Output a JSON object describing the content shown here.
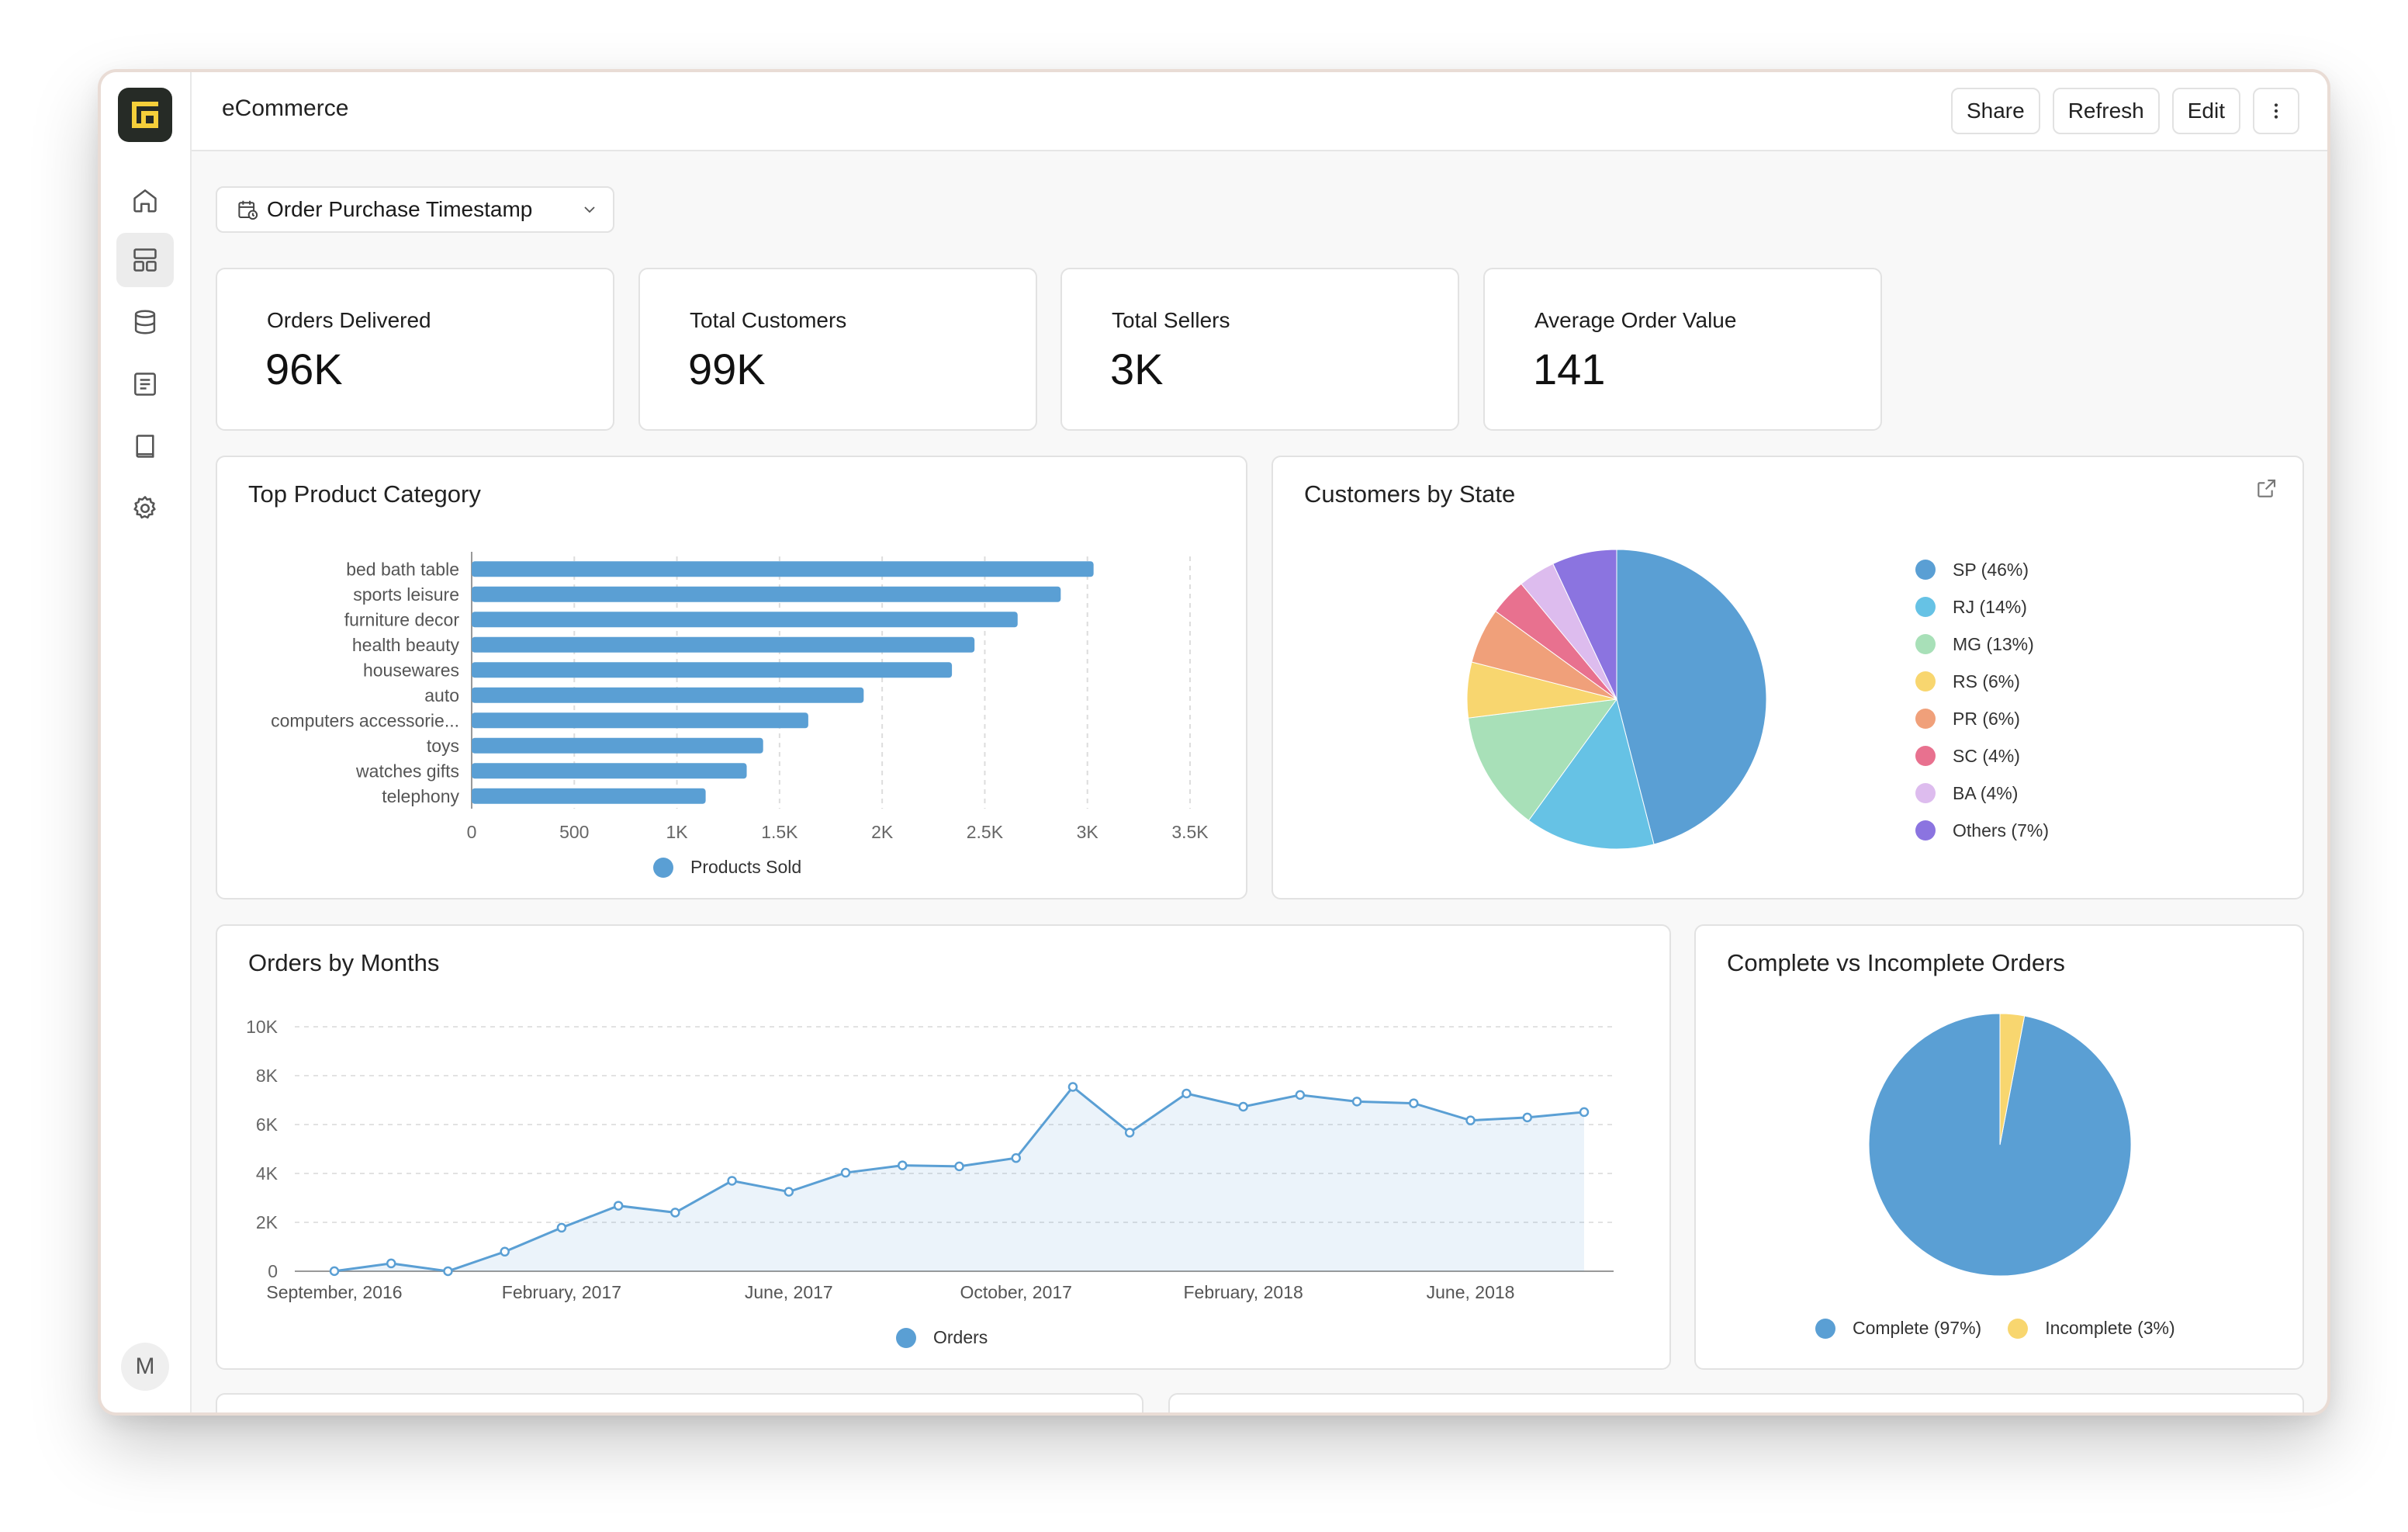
{
  "app": {
    "title": "eCommerce",
    "user_initial": "M"
  },
  "sidebar": {
    "items": [
      {
        "icon": "home-icon",
        "active": false
      },
      {
        "icon": "dashboard-icon",
        "active": true
      },
      {
        "icon": "database-icon",
        "active": false
      },
      {
        "icon": "notebook-icon",
        "active": false
      },
      {
        "icon": "book-icon",
        "active": false
      },
      {
        "icon": "gear-icon",
        "active": false
      }
    ]
  },
  "toolbar": {
    "share": "Share",
    "refresh": "Refresh",
    "edit": "Edit"
  },
  "filter": {
    "label": "Order Purchase Timestamp"
  },
  "kpis": [
    {
      "label": "Orders Delivered",
      "value": "96K"
    },
    {
      "label": "Total Customers",
      "value": "99K"
    },
    {
      "label": "Total Sellers",
      "value": "3K"
    },
    {
      "label": "Average Order Value",
      "value": "141"
    }
  ],
  "colors": {
    "accent": "#5a9fd4",
    "pie": [
      "#5a9fd4",
      "#66c2e5",
      "#a8e0b8",
      "#f8d66f",
      "#f0a07a",
      "#e8718f",
      "#ddbcee",
      "#8b74e0"
    ]
  },
  "chart_data": [
    {
      "type": "bar",
      "title": "Top Product Category",
      "orientation": "horizontal",
      "categories": [
        "bed bath table",
        "sports leisure",
        "furniture decor",
        "health beauty",
        "housewares",
        "auto",
        "computers accessorie...",
        "toys",
        "watches gifts",
        "telephony"
      ],
      "series": [
        {
          "name": "Products Sold",
          "values": [
            3030,
            2870,
            2660,
            2450,
            2340,
            1910,
            1640,
            1420,
            1340,
            1140
          ]
        }
      ],
      "xticks": [
        "0",
        "500",
        "1K",
        "1.5K",
        "2K",
        "2.5K",
        "3K",
        "3.5K"
      ],
      "xlim": [
        0,
        3500
      ],
      "grid": true,
      "legend": "bottom"
    },
    {
      "type": "pie",
      "title": "Customers by State",
      "slices": [
        {
          "label": "SP (46%)",
          "value": 46
        },
        {
          "label": "RJ (14%)",
          "value": 14
        },
        {
          "label": "MG (13%)",
          "value": 13
        },
        {
          "label": "RS (6%)",
          "value": 6
        },
        {
          "label": "PR (6%)",
          "value": 6
        },
        {
          "label": "SC (4%)",
          "value": 4
        },
        {
          "label": "BA (4%)",
          "value": 4
        },
        {
          "label": "Others (7%)",
          "value": 7
        }
      ],
      "legend": "right"
    },
    {
      "type": "area",
      "title": "Orders by Months",
      "x": [
        "Sep 2016",
        "Oct 2016",
        "Dec 2016",
        "Jan 2017",
        "Feb 2017",
        "Mar 2017",
        "Apr 2017",
        "May 2017",
        "Jun 2017",
        "Jul 2017",
        "Aug 2017",
        "Sep 2017",
        "Oct 2017",
        "Nov 2017",
        "Dec 2017",
        "Jan 2018",
        "Feb 2018",
        "Mar 2018",
        "Apr 2018",
        "May 2018",
        "Jun 2018",
        "Jul 2018",
        "Aug 2018"
      ],
      "series": [
        {
          "name": "Orders",
          "values": [
            4,
            320,
            1,
            800,
            1780,
            2680,
            2400,
            3700,
            3250,
            4030,
            4330,
            4290,
            4630,
            7540,
            5670,
            7270,
            6730,
            7210,
            6940,
            6870,
            6170,
            6290,
            6510
          ]
        }
      ],
      "xticks": [
        "September, 2016",
        "February, 2017",
        "June, 2017",
        "October, 2017",
        "February, 2018",
        "June, 2018"
      ],
      "yticks": [
        "0",
        "2K",
        "4K",
        "6K",
        "8K",
        "10K"
      ],
      "ylim": [
        0,
        10000
      ],
      "grid": true,
      "legend": "bottom"
    },
    {
      "type": "pie",
      "title": "Complete vs Incomplete Orders",
      "slices": [
        {
          "label": "Complete (97%)",
          "value": 97
        },
        {
          "label": "Incomplete (3%)",
          "value": 3
        }
      ],
      "legend": "bottom"
    }
  ]
}
